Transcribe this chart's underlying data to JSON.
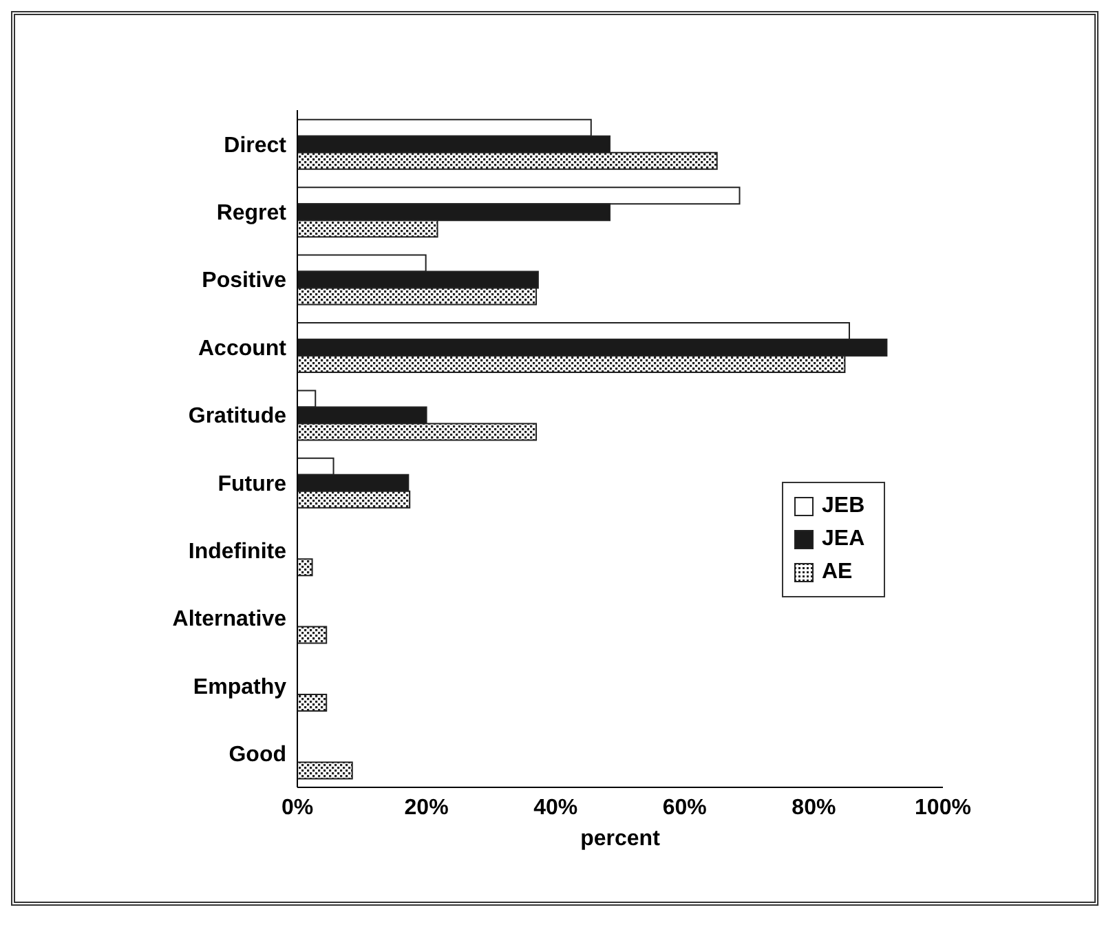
{
  "chart_data": {
    "type": "bar",
    "orientation": "horizontal",
    "xlabel": "percent",
    "categories": [
      "Direct",
      "Regret",
      "Positive",
      "Account",
      "Gratitude",
      "Future",
      "Indefinite",
      "Alternative",
      "Empathy",
      "Good"
    ],
    "series": [
      {
        "name": "JEB",
        "color": "#ffffff",
        "values": [
          45.5,
          68.5,
          19.9,
          85.5,
          2.8,
          5.6,
          0,
          0,
          0,
          0
        ]
      },
      {
        "name": "JEA",
        "color": "#1a1a1a",
        "values": [
          48.4,
          48.4,
          37.3,
          91.3,
          20,
          17.2,
          0,
          0,
          0,
          0
        ]
      },
      {
        "name": "AE",
        "color": "#222222",
        "type": "bar",
        "values": [
          65,
          21.7,
          37,
          84.8,
          37,
          17.4,
          2.3,
          4.5,
          4.5,
          8.5
        ]
      }
    ],
    "xlim": [
      0,
      100
    ],
    "xticks": [
      {
        "value": 0,
        "label": "0%"
      },
      {
        "value": 20,
        "label": "20%"
      },
      {
        "value": 40,
        "label": "40%"
      },
      {
        "value": 60,
        "label": "60%"
      },
      {
        "value": 80,
        "label": "80%"
      },
      {
        "value": 100,
        "label": "100%"
      }
    ],
    "grid": false,
    "legend": "right"
  }
}
